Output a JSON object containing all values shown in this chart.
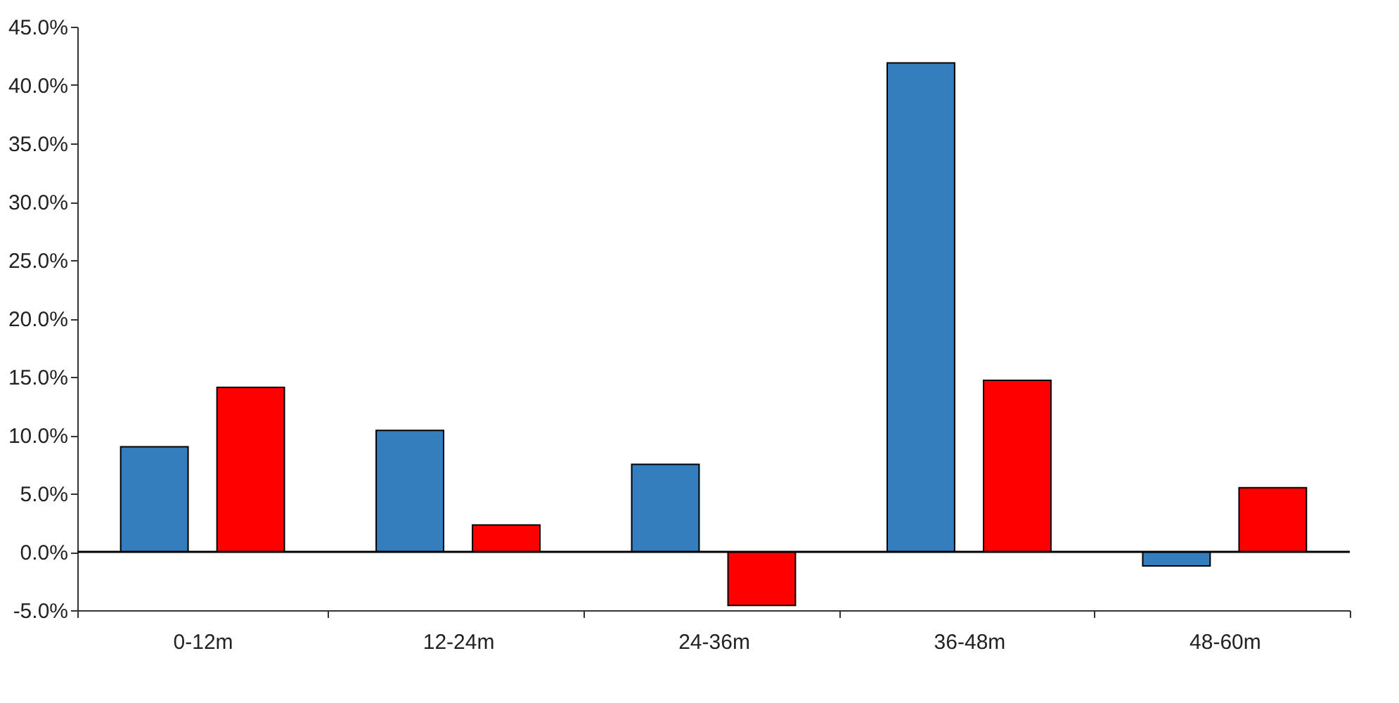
{
  "chart_data": {
    "type": "bar",
    "categories": [
      "0-12m",
      "12-24m",
      "24-36m",
      "36-48m",
      "48-60m"
    ],
    "series": [
      {
        "color": "#357ebd",
        "values": [
          9.0,
          10.4,
          7.5,
          41.9,
          -1.2
        ]
      },
      {
        "color": "#ff0000",
        "values": [
          14.1,
          2.3,
          -4.6,
          14.7,
          5.5
        ]
      }
    ],
    "ylim": [
      -5,
      45
    ],
    "yticks": [
      {
        "value": -5,
        "label": "-5.0%"
      },
      {
        "value": 0,
        "label": "0.0%"
      },
      {
        "value": 5,
        "label": "5.0%"
      },
      {
        "value": 10,
        "label": "10.0%"
      },
      {
        "value": 15,
        "label": "15.0%"
      },
      {
        "value": 20,
        "label": "20.0%"
      },
      {
        "value": 25,
        "label": "25.0%"
      },
      {
        "value": 30,
        "label": "30.0%"
      },
      {
        "value": 35,
        "label": "35.0%"
      },
      {
        "value": 40,
        "label": "40.0%"
      },
      {
        "value": 45,
        "label": "45.0%"
      }
    ],
    "ref_lines": [
      {
        "axis": "y",
        "value": 0,
        "color": "#000000"
      }
    ],
    "grid": false,
    "legend": false
  }
}
